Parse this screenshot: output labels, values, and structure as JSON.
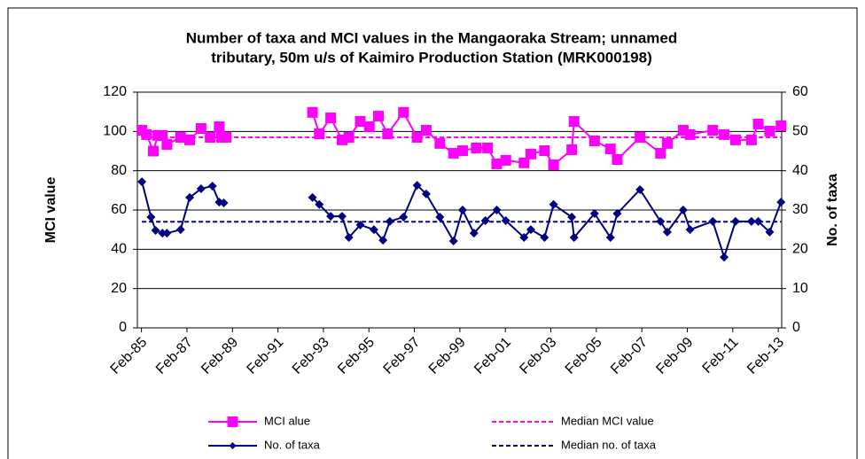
{
  "chart_data": {
    "type": "line",
    "title": [
      "Number of taxa and MCI values in the Mangaoraka Stream; unnamed",
      "tributary, 50m u/s of Kaimiro Production Station (MRK000198)"
    ],
    "y_label": "MCI value",
    "y2_label": "No. of taxa",
    "xlim": [
      1984.9,
      2013.23
    ],
    "xticks": [
      {
        "value": 1985.08,
        "label": "Feb-85"
      },
      {
        "value": 1987.08,
        "label": "Feb-87"
      },
      {
        "value": 1989.08,
        "label": "Feb-89"
      },
      {
        "value": 1991.08,
        "label": "Feb-91"
      },
      {
        "value": 1993.08,
        "label": "Feb-93"
      },
      {
        "value": 1995.08,
        "label": "Feb-95"
      },
      {
        "value": 1997.08,
        "label": "Feb-97"
      },
      {
        "value": 1999.08,
        "label": "Feb-99"
      },
      {
        "value": 2001.08,
        "label": "Feb-01"
      },
      {
        "value": 2003.08,
        "label": "Feb-03"
      },
      {
        "value": 2005.08,
        "label": "Feb-05"
      },
      {
        "value": 2007.08,
        "label": "Feb-07"
      },
      {
        "value": 2009.08,
        "label": "Feb-09"
      },
      {
        "value": 2011.08,
        "label": "Feb-11"
      },
      {
        "value": 2013.08,
        "label": "Feb-13"
      }
    ],
    "ylim": [
      0,
      120
    ],
    "yticks": [
      0,
      20,
      40,
      60,
      80,
      100,
      120
    ],
    "y2lim": [
      0,
      60
    ],
    "y2ticks": [
      0,
      10,
      20,
      30,
      40,
      50,
      60
    ],
    "grid": true,
    "series": [
      {
        "name": "MCI alue",
        "color": "#ff00ff",
        "marker": "square",
        "axis": "y",
        "x": [
          1985.1,
          1985.3,
          1985.6,
          1985.8,
          1986.0,
          1986.2,
          1986.8,
          1987.2,
          1987.7,
          1988.1,
          1988.5,
          1988.6,
          1988.8,
          1990.0,
          1992.6,
          1992.9,
          1993.4,
          1993.9,
          1994.2,
          1994.7,
          1995.1,
          1995.5,
          1995.9,
          1996.6,
          1997.2,
          1997.6,
          1998.2,
          1998.8,
          1999.2,
          1999.8,
          2000.3,
          2000.7,
          2001.1,
          2001.9,
          2002.2,
          2002.8,
          2003.2,
          2004.0,
          2004.1,
          2005.0,
          2005.7,
          2006.0,
          2007.0,
          2007.9,
          2008.2,
          2008.9,
          2009.2,
          2010.2,
          2010.7,
          2011.2,
          2011.9,
          2012.2,
          2012.7,
          2013.2
        ],
        "values": [
          100.6,
          98.4,
          90,
          98,
          97.9,
          93.4,
          97,
          95.7,
          101.5,
          97,
          102.4,
          97,
          97,
          null,
          109.7,
          98.8,
          106.9,
          95.7,
          97,
          105.1,
          102.4,
          107.8,
          98.8,
          109.7,
          97,
          100.6,
          93.9,
          88.9,
          90.2,
          91.6,
          91.6,
          83.5,
          85.3,
          84,
          88.5,
          90.2,
          83,
          90.7,
          105.1,
          95.2,
          91.1,
          85.7,
          97,
          88.9,
          93.9,
          100.6,
          98.4,
          100.6,
          98.4,
          95.7,
          95.7,
          103.8,
          100.2,
          102.9
        ]
      },
      {
        "name": "Median MCI value",
        "color": "#ff00ff",
        "dash": true,
        "axis": "y",
        "value": 97
      },
      {
        "name": "No. of taxa",
        "color": "#000080",
        "marker": "diamond",
        "axis": "y2",
        "x": [
          1985.1,
          1985.5,
          1985.7,
          1986.0,
          1986.2,
          1986.8,
          1987.2,
          1987.7,
          1988.2,
          1988.5,
          1988.7,
          1990.0,
          1992.6,
          1992.9,
          1993.4,
          1993.9,
          1994.2,
          1994.7,
          1995.3,
          1995.7,
          1996.0,
          1996.6,
          1997.2,
          1997.6,
          1998.2,
          1998.8,
          1999.2,
          1999.7,
          2000.2,
          2000.7,
          2001.1,
          2001.9,
          2002.2,
          2002.8,
          2003.2,
          2004.0,
          2004.1,
          2005.0,
          2005.7,
          2006.0,
          2007.0,
          2007.9,
          2008.2,
          2008.9,
          2009.2,
          2010.2,
          2010.7,
          2011.2,
          2011.9,
          2012.2,
          2012.7,
          2013.2
        ],
        "values": [
          37.2,
          28.2,
          24.8,
          24.1,
          24.1,
          25,
          33.2,
          35.4,
          36.1,
          32,
          31.8,
          null,
          33.2,
          31.4,
          28.4,
          28.4,
          23,
          26.2,
          25,
          22.3,
          27.1,
          28.2,
          36.3,
          34.1,
          28.2,
          22.1,
          30,
          24.1,
          27.3,
          30,
          27.3,
          23,
          25,
          23,
          31.4,
          28.2,
          23,
          29.1,
          23,
          29.1,
          35.2,
          27.1,
          24.4,
          30,
          25,
          27.1,
          18,
          27.1,
          27.1,
          27.1,
          24.4,
          32
        ]
      },
      {
        "name": "Median no. of taxa",
        "color": "#000080",
        "dash": true,
        "axis": "y2",
        "value": 27
      }
    ]
  }
}
